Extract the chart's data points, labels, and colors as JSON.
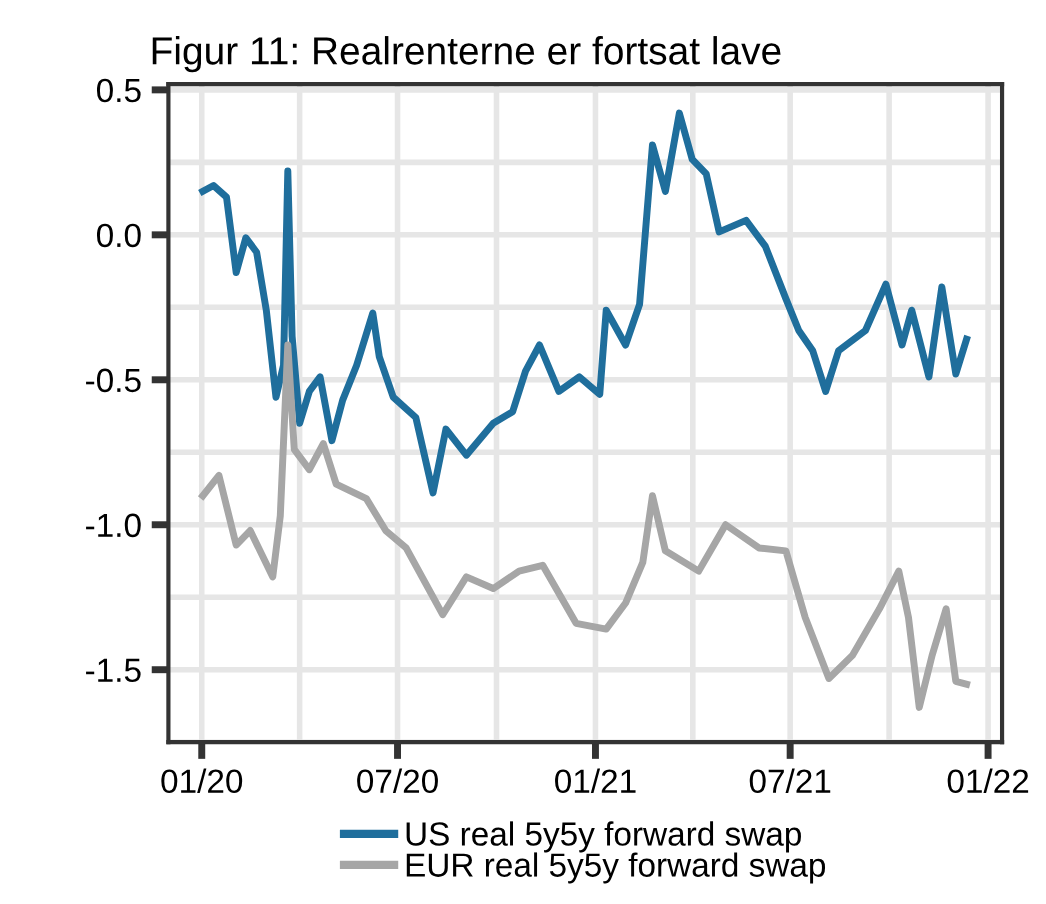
{
  "chart_data": {
    "type": "line",
    "title": "Figur 11: Realrenterne er fortsat lave",
    "series": [
      {
        "name": "US real 5y5y forward swap",
        "color": "#1f6e9c",
        "x": [
          "2020-01-02",
          "2020-01-12",
          "2020-01-24",
          "2020-02-02",
          "2020-02-11",
          "2020-02-21",
          "2020-03-01",
          "2020-03-10",
          "2020-03-17",
          "2020-03-21",
          "2020-03-25",
          "2020-04-01",
          "2020-04-10",
          "2020-04-20",
          "2020-05-01",
          "2020-05-11",
          "2020-05-24",
          "2020-06-08",
          "2020-06-14",
          "2020-06-27",
          "2020-07-18",
          "2020-08-03",
          "2020-08-15",
          "2020-09-03",
          "2020-09-28",
          "2020-10-16",
          "2020-10-28",
          "2020-11-10",
          "2020-11-28",
          "2020-12-17",
          "2021-01-05",
          "2021-01-11",
          "2021-01-29",
          "2021-02-11",
          "2021-02-23",
          "2021-03-07",
          "2021-03-20",
          "2021-04-01",
          "2021-04-14",
          "2021-04-26",
          "2021-05-21",
          "2021-06-08",
          "2021-06-27",
          "2021-07-09",
          "2021-07-22",
          "2021-08-03",
          "2021-08-15",
          "2021-09-09",
          "2021-09-28",
          "2021-10-13",
          "2021-10-22",
          "2021-11-07",
          "2021-11-19",
          "2021-12-02",
          "2021-12-12"
        ],
        "values": [
          0.15,
          0.17,
          0.13,
          -0.13,
          -0.01,
          -0.06,
          -0.26,
          -0.56,
          -0.45,
          0.22,
          -0.35,
          -0.65,
          -0.54,
          -0.49,
          -0.71,
          -0.57,
          -0.45,
          -0.27,
          -0.42,
          -0.56,
          -0.63,
          -0.89,
          -0.67,
          -0.76,
          -0.65,
          -0.61,
          -0.47,
          -0.38,
          -0.54,
          -0.49,
          -0.55,
          -0.26,
          -0.38,
          -0.24,
          0.31,
          0.15,
          0.42,
          0.26,
          0.21,
          0.01,
          0.05,
          -0.04,
          -0.22,
          -0.33,
          -0.4,
          -0.54,
          -0.4,
          -0.33,
          -0.17,
          -0.38,
          -0.26,
          -0.49,
          -0.18,
          -0.48,
          -0.36
        ]
      },
      {
        "name": "EUR real 5y5y forward swap",
        "color": "#a6a6a6",
        "x": [
          "2020-01-02",
          "2020-01-17",
          "2020-02-02",
          "2020-02-15",
          "2020-03-07",
          "2020-03-14",
          "2020-03-21",
          "2020-03-27",
          "2020-04-10",
          "2020-04-23",
          "2020-05-05",
          "2020-06-02",
          "2020-06-20",
          "2020-07-09",
          "2020-08-12",
          "2020-09-03",
          "2020-09-28",
          "2020-10-22",
          "2020-11-13",
          "2020-12-14",
          "2021-01-11",
          "2021-01-29",
          "2021-02-14",
          "2021-02-23",
          "2021-03-07",
          "2021-04-07",
          "2021-05-02",
          "2021-06-02",
          "2021-06-27",
          "2021-07-15",
          "2021-08-06",
          "2021-08-28",
          "2021-09-22",
          "2021-10-10",
          "2021-10-19",
          "2021-10-29",
          "2021-11-10",
          "2021-11-23",
          "2021-12-02",
          "2021-12-12"
        ],
        "values": [
          -0.9,
          -0.83,
          -1.07,
          -1.02,
          -1.18,
          -0.97,
          -0.38,
          -0.74,
          -0.81,
          -0.72,
          -0.86,
          -0.91,
          -1.02,
          -1.08,
          -1.31,
          -1.18,
          -1.22,
          -1.16,
          -1.14,
          -1.34,
          -1.36,
          -1.27,
          -1.13,
          -0.9,
          -1.09,
          -1.16,
          -1.0,
          -1.08,
          -1.09,
          -1.32,
          -1.53,
          -1.45,
          -1.29,
          -1.16,
          -1.32,
          -1.63,
          -1.45,
          -1.29,
          -1.54,
          -1.55
        ]
      }
    ],
    "xlim": [
      "2019-12-01",
      "2022-01-14"
    ],
    "xticks": [
      {
        "value": "2020-01-01",
        "label": "01/20"
      },
      {
        "value": "2020-07-01",
        "label": "07/20"
      },
      {
        "value": "2021-01-01",
        "label": "01/21"
      },
      {
        "value": "2021-07-01",
        "label": "07/21"
      },
      {
        "value": "2022-01-01",
        "label": "01/22"
      }
    ],
    "ylim": [
      -1.75,
      0.52
    ],
    "yticks": [
      {
        "value": 0.5,
        "label": "0.5"
      },
      {
        "value": 0.0,
        "label": "0.0"
      },
      {
        "value": -0.5,
        "label": "-0.5"
      },
      {
        "value": -1.0,
        "label": "-1.0"
      },
      {
        "value": -1.5,
        "label": "-1.5"
      }
    ],
    "grid": true,
    "legend": "bottom",
    "line_style": "solid",
    "marker": "none"
  }
}
